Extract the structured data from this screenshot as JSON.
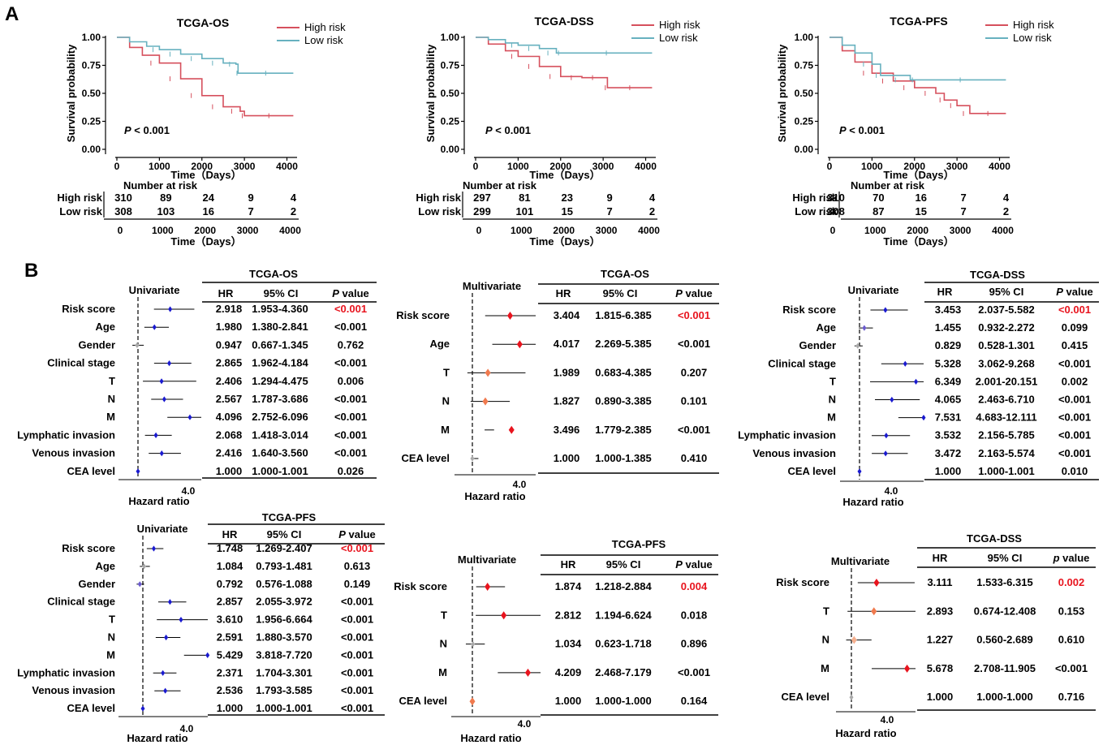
{
  "panel_labels": {
    "a": "A",
    "b": "B"
  },
  "colors": {
    "high": "#d6505d",
    "low": "#67b1bf",
    "blue": "#1a1acf",
    "red": "#e8141e",
    "orange": "#f07a4e",
    "grey": "#aaaaaa"
  },
  "chart_data": [
    {
      "type": "line",
      "kind": "km",
      "title": "TCGA-OS",
      "xlabel": "Time（Days）",
      "ylabel": "Survival probability",
      "xlim": [
        0,
        4200
      ],
      "ylim": [
        0,
        1
      ],
      "xticks": [
        "0",
        "1000",
        "2000",
        "3000",
        "4000"
      ],
      "yticks": [
        "0.00",
        "0.25",
        "0.50",
        "0.75",
        "1.00"
      ],
      "pvalue_p": "P",
      "pvalue_rest": " < 0.001",
      "series": [
        {
          "name": "High risk",
          "x": [
            0,
            300,
            600,
            1000,
            1500,
            2000,
            2500,
            2900,
            3000,
            4150
          ],
          "y": [
            1.0,
            0.91,
            0.84,
            0.77,
            0.63,
            0.48,
            0.38,
            0.34,
            0.3,
            0.3
          ]
        },
        {
          "name": "Low risk",
          "x": [
            0,
            300,
            700,
            1000,
            1500,
            2000,
            2500,
            2800,
            2850,
            4150
          ],
          "y": [
            1.0,
            0.96,
            0.92,
            0.89,
            0.85,
            0.81,
            0.77,
            0.76,
            0.68,
            0.68
          ]
        }
      ],
      "risk_table": {
        "title": "Number at risk",
        "rows": [
          {
            "label": "High risk",
            "values": [
              "310",
              "89",
              "24",
              "9",
              "4"
            ]
          },
          {
            "label": "Low risk",
            "values": [
              "308",
              "103",
              "16",
              "7",
              "2"
            ]
          }
        ],
        "xticks": [
          "0",
          "1000",
          "2000",
          "3000",
          "4000"
        ],
        "xlabel": "Time（Days）"
      }
    },
    {
      "type": "line",
      "kind": "km",
      "title": "TCGA-DSS",
      "xlabel": "Time（Days）",
      "ylabel": "Survival probability",
      "xlim": [
        0,
        4200
      ],
      "ylim": [
        0,
        1
      ],
      "xticks": [
        "0",
        "1000",
        "2000",
        "3000",
        "4000"
      ],
      "yticks": [
        "0.00",
        "0.25",
        "0.50",
        "0.75",
        "1.00"
      ],
      "pvalue_p": "P",
      "pvalue_rest": " < 0.001",
      "series": [
        {
          "name": "High risk",
          "x": [
            0,
            300,
            700,
            1000,
            1500,
            2000,
            2500,
            3000,
            3100,
            4150
          ],
          "y": [
            1.0,
            0.94,
            0.88,
            0.83,
            0.74,
            0.65,
            0.64,
            0.64,
            0.55,
            0.55
          ]
        },
        {
          "name": "Low risk",
          "x": [
            0,
            300,
            700,
            1000,
            1500,
            1900,
            2000,
            4150
          ],
          "y": [
            1.0,
            0.98,
            0.95,
            0.93,
            0.9,
            0.86,
            0.86,
            0.86
          ]
        }
      ],
      "risk_table": {
        "title": "Number at risk",
        "rows": [
          {
            "label": "High risk",
            "values": [
              "297",
              "81",
              "23",
              "9",
              "4"
            ]
          },
          {
            "label": "Low risk",
            "values": [
              "299",
              "101",
              "15",
              "7",
              "2"
            ]
          }
        ],
        "xticks": [
          "0",
          "1000",
          "2000",
          "3000",
          "4000"
        ],
        "xlabel": "Time（Days）"
      }
    },
    {
      "type": "line",
      "kind": "km",
      "title": "TCGA-PFS",
      "xlabel": "Time（Days）",
      "ylabel": "Survival probability",
      "xlim": [
        0,
        4200
      ],
      "ylim": [
        0,
        1
      ],
      "xticks": [
        "0",
        "1000",
        "2000",
        "3000",
        "4000"
      ],
      "yticks": [
        "0.00",
        "0.25",
        "0.50",
        "0.75",
        "1.00"
      ],
      "pvalue_p": "P",
      "pvalue_rest": " < 0.001",
      "series": [
        {
          "name": "High risk",
          "x": [
            0,
            300,
            600,
            1000,
            1500,
            2000,
            2500,
            2700,
            3000,
            3300,
            4150
          ],
          "y": [
            1.0,
            0.88,
            0.78,
            0.68,
            0.61,
            0.55,
            0.5,
            0.44,
            0.39,
            0.32,
            0.32
          ]
        },
        {
          "name": "Low risk",
          "x": [
            0,
            300,
            600,
            1000,
            1200,
            1900,
            2000,
            4150
          ],
          "y": [
            1.0,
            0.93,
            0.86,
            0.76,
            0.66,
            0.62,
            0.62,
            0.62
          ]
        }
      ],
      "risk_table": {
        "title": "Number at risk",
        "rows": [
          {
            "label": "High risk",
            "values": [
              "310",
              "70",
              "16",
              "7",
              "4"
            ]
          },
          {
            "label": "Low risk",
            "values": [
              "308",
              "87",
              "15",
              "7",
              "2"
            ]
          }
        ],
        "xticks": [
          "0",
          "1000",
          "2000",
          "3000",
          "4000"
        ],
        "xlabel": "Time（Days）"
      }
    },
    {
      "type": "scatter",
      "kind": "forest",
      "title": "TCGA-OS",
      "analysis": "Univariate",
      "xlabel": "Hazard ratio",
      "xtick": "4.0",
      "xlim": [
        0,
        12
      ],
      "ref": 1,
      "headers": {
        "hr": "HR",
        "ci": "95% CI",
        "p_italic": "P",
        "p_rest": " value"
      },
      "rows": [
        {
          "label": "Risk score",
          "hr": 2.918,
          "lo": 1.953,
          "hi": 4.36,
          "hr_text": "2.918",
          "ci": "1.953-4.360",
          "p": "<0.001",
          "p_red": true,
          "color": "blue"
        },
        {
          "label": "Age",
          "hr": 1.98,
          "lo": 1.38,
          "hi": 2.841,
          "hr_text": "1.980",
          "ci": "1.380-2.841",
          "p": "<0.001",
          "color": "blue"
        },
        {
          "label": "Gender",
          "hr": 0.947,
          "lo": 0.667,
          "hi": 1.345,
          "hr_text": "0.947",
          "ci": "0.667-1.345",
          "p": "0.762",
          "color": "grey"
        },
        {
          "label": "Clinical stage",
          "hr": 2.865,
          "lo": 1.962,
          "hi": 4.184,
          "hr_text": "2.865",
          "ci": "1.962-4.184",
          "p": "<0.001",
          "color": "blue"
        },
        {
          "label": "T",
          "hr": 2.406,
          "lo": 1.294,
          "hi": 4.475,
          "hr_text": "2.406",
          "ci": "1.294-4.475",
          "p": "0.006",
          "color": "blue"
        },
        {
          "label": "N",
          "hr": 2.567,
          "lo": 1.787,
          "hi": 3.686,
          "hr_text": "2.567",
          "ci": "1.787-3.686",
          "p": "<0.001",
          "color": "blue"
        },
        {
          "label": "M",
          "hr": 4.096,
          "lo": 2.752,
          "hi": 6.096,
          "hr_text": "4.096",
          "ci": "2.752-6.096",
          "p": "<0.001",
          "color": "blue"
        },
        {
          "label": "Lymphatic invasion",
          "hr": 2.068,
          "lo": 1.418,
          "hi": 3.014,
          "hr_text": "2.068",
          "ci": "1.418-3.014",
          "p": "<0.001",
          "color": "blue"
        },
        {
          "label": "Venous invasion",
          "hr": 2.416,
          "lo": 1.64,
          "hi": 3.56,
          "hr_text": "2.416",
          "ci": "1.640-3.560",
          "p": "<0.001",
          "color": "blue"
        },
        {
          "label": "CEA level",
          "hr": 1.0,
          "lo": 1.0,
          "hi": 1.001,
          "hr_text": "1.000",
          "ci": "1.000-1.001",
          "p": "0.026",
          "color": "blue"
        }
      ]
    },
    {
      "type": "scatter",
      "kind": "forest",
      "title": "TCGA-OS",
      "analysis": "Multivariate",
      "xlabel": "Hazard ratio",
      "xtick": "4.0",
      "xlim": [
        0,
        7
      ],
      "ref": 1,
      "headers": {
        "hr": "HR",
        "ci": "95% CI",
        "p_italic": "P",
        "p_rest": " value"
      },
      "rows": [
        {
          "label": "Risk score",
          "hr": 3.404,
          "lo": 1.815,
          "hi": 6.385,
          "hr_text": "3.404",
          "ci": "1.815-6.385",
          "p": "<0.001",
          "p_red": true,
          "color": "red"
        },
        {
          "label": "Age",
          "hr": 4.017,
          "lo": 2.269,
          "hi": 5.385,
          "hr_text": "4.017",
          "ci": "2.269-5.385",
          "p": "<0.001",
          "color": "red"
        },
        {
          "label": "T",
          "hr": 1.989,
          "lo": 0.683,
          "hi": 4.385,
          "hr_text": "1.989",
          "ci": "0.683-4.385",
          "p": "0.207",
          "color": "orange"
        },
        {
          "label": "N",
          "hr": 1.827,
          "lo": 0.89,
          "hi": 3.385,
          "hr_text": "1.827",
          "ci": "0.890-3.385",
          "p": "0.101",
          "color": "orange"
        },
        {
          "label": "M",
          "hr": 3.496,
          "lo": 1.779,
          "hi": 2.385,
          "hr_text": "3.496",
          "ci": "1.779-2.385",
          "p": "<0.001",
          "color": "red"
        },
        {
          "label": "CEA level",
          "hr": 1.0,
          "lo": 1.0,
          "hi": 1.385,
          "hr_text": "1.000",
          "ci": "1.000-1.385",
          "p": "0.410",
          "color": "grey"
        }
      ]
    },
    {
      "type": "scatter",
      "kind": "forest",
      "title": "TCGA-DSS",
      "analysis": "Univariate",
      "xlabel": "Hazard ratio",
      "xtick": "4.0",
      "xlim": [
        0,
        12
      ],
      "ref": 1,
      "headers": {
        "hr": "HR",
        "ci": "95% CI",
        "p_italic": "P",
        "p_rest": " value"
      },
      "rows": [
        {
          "label": "Risk score",
          "hr": 3.453,
          "lo": 2.037,
          "hi": 5.582,
          "hr_text": "3.453",
          "ci": "2.037-5.582",
          "p": "<0.001",
          "p_red": true,
          "color": "blue"
        },
        {
          "label": "Age",
          "hr": 1.455,
          "lo": 0.932,
          "hi": 2.272,
          "hr_text": "1.455",
          "ci": "0.932-2.272",
          "p": "0.099",
          "color": "purple"
        },
        {
          "label": "Gender",
          "hr": 0.829,
          "lo": 0.528,
          "hi": 1.301,
          "hr_text": "0.829",
          "ci": "0.528-1.301",
          "p": "0.415",
          "color": "grey"
        },
        {
          "label": "Clinical stage",
          "hr": 5.328,
          "lo": 3.062,
          "hi": 9.268,
          "hr_text": "5.328",
          "ci": "3.062-9.268",
          "p": "<0.001",
          "color": "blue"
        },
        {
          "label": "T",
          "hr": 6.349,
          "lo": 2.001,
          "hi": 20.151,
          "hr_text": "6.349",
          "ci": "2.001-20.151",
          "p": "0.002",
          "color": "blue"
        },
        {
          "label": "N",
          "hr": 4.065,
          "lo": 2.463,
          "hi": 6.71,
          "hr_text": "4.065",
          "ci": "2.463-6.710",
          "p": "<0.001",
          "color": "blue"
        },
        {
          "label": "M",
          "hr": 7.531,
          "lo": 4.683,
          "hi": 12.111,
          "hr_text": "7.531",
          "ci": "4.683-12.111",
          "p": "<0.001",
          "color": "blue"
        },
        {
          "label": "Lymphatic invasion",
          "hr": 3.532,
          "lo": 2.156,
          "hi": 5.785,
          "hr_text": "3.532",
          "ci": "2.156-5.785",
          "p": "<0.001",
          "color": "blue"
        },
        {
          "label": "Venous invasion",
          "hr": 3.472,
          "lo": 2.163,
          "hi": 5.574,
          "hr_text": "3.472",
          "ci": "2.163-5.574",
          "p": "<0.001",
          "color": "blue"
        },
        {
          "label": "CEA level",
          "hr": 1.0,
          "lo": 1.0,
          "hi": 1.001,
          "hr_text": "1.000",
          "ci": "1.000-1.001",
          "p": "0.010",
          "color": "blue"
        }
      ]
    },
    {
      "type": "scatter",
      "kind": "forest",
      "title": "TCGA-PFS",
      "analysis": "Univariate",
      "xlabel": "Hazard ratio",
      "xtick": "4.0",
      "xlim": [
        0,
        12
      ],
      "ref": 1,
      "headers": {
        "hr": "HR",
        "ci": "95% CI",
        "p_italic": "P",
        "p_rest": " value"
      },
      "rows": [
        {
          "label": "Risk score",
          "hr": 1.748,
          "lo": 1.269,
          "hi": 2.407,
          "hr_text": "1.748",
          "ci": "1.269-2.407",
          "p": "<0.001",
          "p_red": true,
          "color": "blue"
        },
        {
          "label": "Age",
          "hr": 1.084,
          "lo": 0.793,
          "hi": 1.481,
          "hr_text": "1.084",
          "ci": "0.793-1.481",
          "p": "0.613",
          "color": "grey"
        },
        {
          "label": "Gender",
          "hr": 0.792,
          "lo": 0.576,
          "hi": 1.088,
          "hr_text": "0.792",
          "ci": "0.576-1.088",
          "p": "0.149",
          "color": "purple"
        },
        {
          "label": "Clinical stage",
          "hr": 2.857,
          "lo": 2.055,
          "hi": 3.972,
          "hr_text": "2.857",
          "ci": "2.055-3.972",
          "p": "<0.001",
          "color": "blue"
        },
        {
          "label": "T",
          "hr": 3.61,
          "lo": 1.956,
          "hi": 6.664,
          "hr_text": "3.610",
          "ci": "1.956-6.664",
          "p": "<0.001",
          "color": "blue"
        },
        {
          "label": "N",
          "hr": 2.591,
          "lo": 1.88,
          "hi": 3.57,
          "hr_text": "2.591",
          "ci": "1.880-3.570",
          "p": "<0.001",
          "color": "blue"
        },
        {
          "label": "M",
          "hr": 5.429,
          "lo": 3.818,
          "hi": 7.72,
          "hr_text": "5.429",
          "ci": "3.818-7.720",
          "p": "<0.001",
          "color": "blue"
        },
        {
          "label": "Lymphatic invasion",
          "hr": 2.371,
          "lo": 1.704,
          "hi": 3.301,
          "hr_text": "2.371",
          "ci": "1.704-3.301",
          "p": "<0.001",
          "color": "blue"
        },
        {
          "label": "Venous invasion",
          "hr": 2.536,
          "lo": 1.793,
          "hi": 3.585,
          "hr_text": "2.536",
          "ci": "1.793-3.585",
          "p": "<0.001",
          "color": "blue"
        },
        {
          "label": "CEA level",
          "hr": 1.0,
          "lo": 1.0,
          "hi": 1.001,
          "hr_text": "1.000",
          "ci": "1.000-1.001",
          "p": "<0.001",
          "color": "blue"
        }
      ]
    },
    {
      "type": "scatter",
      "kind": "forest",
      "title": "TCGA-PFS",
      "analysis": "Multivariate",
      "xlabel": "Hazard ratio",
      "xtick": "4.0",
      "xlim": [
        0,
        7
      ],
      "ref": 1,
      "headers": {
        "hr": "HR",
        "ci": "95% CI",
        "p_italic": "P",
        "p_rest": " value"
      },
      "rows": [
        {
          "label": "Risk score",
          "hr": 1.874,
          "lo": 1.218,
          "hi": 2.884,
          "hr_text": "1.874",
          "ci": "1.218-2.884",
          "p": "0.004",
          "p_red": true,
          "color": "red"
        },
        {
          "label": "T",
          "hr": 2.812,
          "lo": 1.194,
          "hi": 6.624,
          "hr_text": "2.812",
          "ci": "1.194-6.624",
          "p": "0.018",
          "color": "red"
        },
        {
          "label": "N",
          "hr": 1.034,
          "lo": 0.623,
          "hi": 1.718,
          "hr_text": "1.034",
          "ci": "0.623-1.718",
          "p": "0.896",
          "color": "grey"
        },
        {
          "label": "M",
          "hr": 4.209,
          "lo": 2.468,
          "hi": 7.179,
          "hr_text": "4.209",
          "ci": "2.468-7.179",
          "p": "<0.001",
          "color": "red"
        },
        {
          "label": "CEA level",
          "hr": 1.0,
          "lo": 1.0,
          "hi": 1.0,
          "hr_text": "1.000",
          "ci": "1.000-1.000",
          "p": "0.164",
          "color": "orange"
        }
      ]
    },
    {
      "type": "scatter",
      "kind": "forest",
      "title": "TCGA-DSS",
      "analysis": "Multivariate",
      "xlabel": "Hazard ratio",
      "xtick": "4.0",
      "xlim": [
        0,
        7
      ],
      "ref": 1,
      "headers": {
        "hr": "HR",
        "ci": "95% CI",
        "p_italic": "p",
        "p_rest": " value"
      },
      "rows": [
        {
          "label": "Risk score",
          "hr": 3.111,
          "lo": 1.533,
          "hi": 6.315,
          "hr_text": "3.111",
          "ci": "1.533-6.315",
          "p": "0.002",
          "p_red": true,
          "color": "red"
        },
        {
          "label": "T",
          "hr": 2.893,
          "lo": 0.674,
          "hi": 12.408,
          "hr_text": "2.893",
          "ci": "0.674-12.408",
          "p": "0.153",
          "color": "orange"
        },
        {
          "label": "N",
          "hr": 1.227,
          "lo": 0.56,
          "hi": 2.689,
          "hr_text": "1.227",
          "ci": "0.560-2.689",
          "p": "0.610",
          "color": "lightorange"
        },
        {
          "label": "M",
          "hr": 5.678,
          "lo": 2.708,
          "hi": 11.905,
          "hr_text": "5.678",
          "ci": "2.708-11.905",
          "p": "<0.001",
          "color": "red"
        },
        {
          "label": "CEA level",
          "hr": 1.0,
          "lo": 1.0,
          "hi": 1.0,
          "hr_text": "1.000",
          "ci": "1.000-1.000",
          "p": "0.716",
          "color": "grey"
        }
      ]
    }
  ]
}
